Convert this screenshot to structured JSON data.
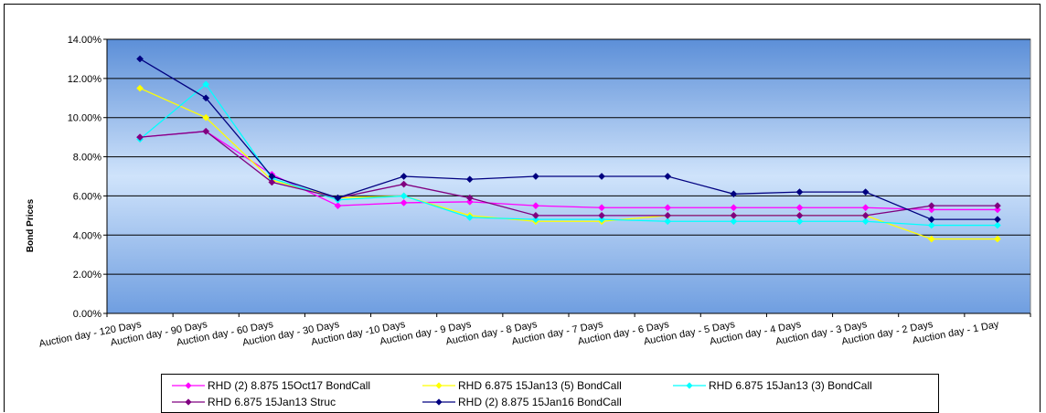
{
  "chart_data": {
    "type": "line",
    "title": "",
    "xlabel": "",
    "ylabel": "Bond Prices",
    "ylim": [
      0,
      0.14
    ],
    "yticks": [
      "0.00%",
      "2.00%",
      "4.00%",
      "6.00%",
      "8.00%",
      "10.00%",
      "12.00%",
      "14.00%"
    ],
    "grid": true,
    "legend_position": "bottom",
    "plot_background": "blue-gradient",
    "categories": [
      "Auction day - 120 Days",
      "Auction day - 90 Days",
      "Auction day - 60 Days",
      "Auction day - 30 Days",
      "Auction day -10 Days",
      "Auction day - 9 Days",
      "Auction day - 8 Days",
      "Auction day - 7 Days",
      "Auction day - 6 Days",
      "Auction day - 5 Days",
      "Auction day - 4 Days",
      "Auction day - 3 Days",
      "Auction day - 2 Days",
      "Auction day - 1 Day"
    ],
    "series": [
      {
        "name": "RHD (2) 8.875 15Oct17 BondCall",
        "color": "#ff00ff",
        "marker": "diamond",
        "values": [
          0.09,
          0.093,
          0.071,
          0.055,
          0.0565,
          0.057,
          0.055,
          0.054,
          0.054,
          0.054,
          0.054,
          0.054,
          0.053,
          0.053
        ]
      },
      {
        "name": "RHD 6.875 15Jan13 (5) BondCall",
        "color": "#ffff00",
        "marker": "diamond",
        "values": [
          0.115,
          0.1,
          0.068,
          0.059,
          0.06,
          0.05,
          0.047,
          0.047,
          0.05,
          0.05,
          0.05,
          0.05,
          0.038,
          0.038
        ]
      },
      {
        "name": "RHD 6.875 15Jan13 (3) BondCall",
        "color": "#00ffff",
        "marker": "diamond",
        "values": [
          0.089,
          0.117,
          0.069,
          0.058,
          0.06,
          0.049,
          0.048,
          0.048,
          0.047,
          0.047,
          0.047,
          0.047,
          0.045,
          0.045
        ]
      },
      {
        "name": "RHD 6.875 15Jan13 Struc",
        "color": "#800080",
        "marker": "diamond",
        "values": [
          0.09,
          0.093,
          0.067,
          0.059,
          0.066,
          0.059,
          0.05,
          0.05,
          0.05,
          0.05,
          0.05,
          0.05,
          0.055,
          0.055
        ]
      },
      {
        "name": "RHD (2) 8.875 15Jan16 BondCall",
        "color": "#000080",
        "marker": "diamond",
        "values": [
          0.13,
          0.11,
          0.07,
          0.059,
          0.07,
          0.0685,
          0.07,
          0.07,
          0.07,
          0.061,
          0.062,
          0.062,
          0.048,
          0.048
        ]
      }
    ]
  }
}
